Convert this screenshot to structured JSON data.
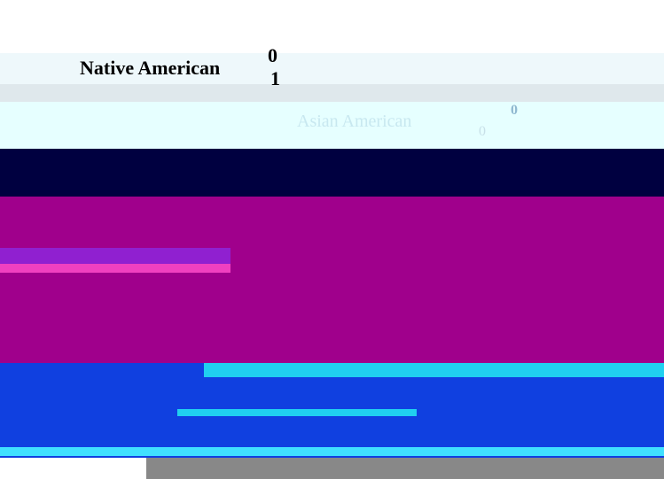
{
  "rows": [
    {
      "label": "Native American",
      "values": [
        0,
        1
      ]
    },
    {
      "label": "Asian American",
      "values": [
        0,
        0
      ]
    }
  ]
}
